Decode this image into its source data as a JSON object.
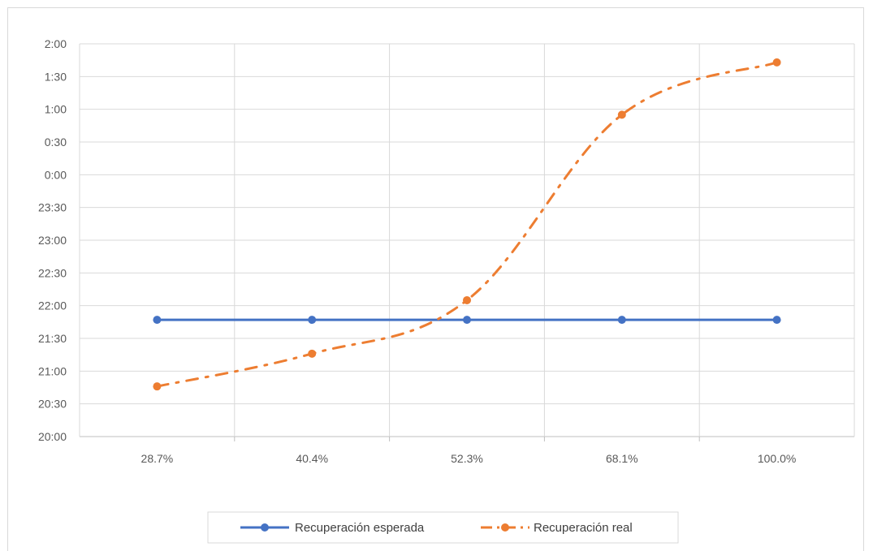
{
  "chart_data": {
    "type": "line",
    "categories": [
      "28.7%",
      "40.4%",
      "52.3%",
      "68.1%",
      "100.0%"
    ],
    "y_axis": {
      "min_minutes": 1200,
      "max_minutes": 1560,
      "step_minutes": 30,
      "tick_labels": [
        "20:00",
        "20:30",
        "21:00",
        "21:30",
        "22:00",
        "22:30",
        "23:00",
        "23:30",
        "0:00",
        "0:30",
        "1:00",
        "1:30",
        "2:00"
      ]
    },
    "series": [
      {
        "name": "Recuperación esperada",
        "color": "#4472C4",
        "line_style": "solid",
        "values_time": [
          "21:47",
          "21:47",
          "21:47",
          "21:47",
          "21:47"
        ],
        "values_minutes": [
          1307,
          1307,
          1307,
          1307,
          1307
        ]
      },
      {
        "name": "Recuperación real",
        "color": "#ED7D31",
        "line_style": "dash-dot",
        "values_time": [
          "20:46",
          "21:16",
          "22:05",
          "0:55",
          "1:43"
        ],
        "values_minutes": [
          1246,
          1276,
          1325,
          1495,
          1543
        ]
      }
    ],
    "grid": true,
    "legend_position": "bottom"
  }
}
